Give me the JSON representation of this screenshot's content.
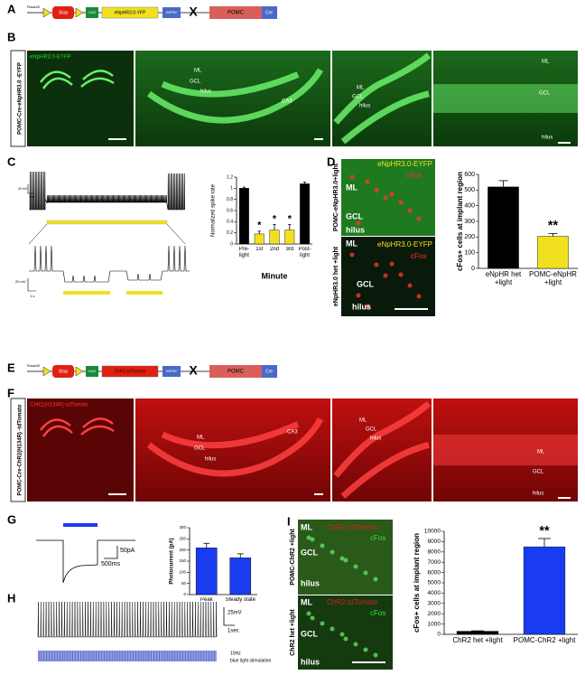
{
  "panel_labels": [
    "A",
    "B",
    "C",
    "D",
    "E",
    "F",
    "G",
    "H",
    "I"
  ],
  "construct_A": {
    "promoter": "Rosa26",
    "stop": "Stop",
    "cag": "CAG",
    "gene": "eNpHR3.0-YFP",
    "wpre": "WPRE",
    "cross": "X",
    "driver": "POMC",
    "cre": "Cre"
  },
  "construct_E": {
    "promoter": "Rosa26",
    "stop": "Stop",
    "cag": "CAG",
    "gene": "ChR2-tdTomato",
    "wpre": "WPRE",
    "cross": "X",
    "driver": "POMC",
    "cre": "Cre"
  },
  "panel_B": {
    "side_label": "POMC-Cre-eNpHR3.0 -EYFP",
    "stain": "eNpHR3.0-EYFP",
    "image_labels": [
      [
        "ML",
        "GCL",
        "hilus",
        "CA3"
      ],
      [
        "ML",
        "GCL",
        "hilus"
      ],
      [
        "ML",
        "GCL",
        "hilus"
      ]
    ]
  },
  "panel_C": {
    "scale_top": [
      "20 mV",
      "10s"
    ],
    "scale_bottom": [
      "20 mV",
      "1 s"
    ]
  },
  "panel_D": {
    "side_labels": [
      "POMC-eNpHR3.0+light",
      "eNpHR3.0 het +light"
    ],
    "images": [
      {
        "stain": "eNpHR3.0-EYFP",
        "marker": "cFos",
        "labels": [
          "ML",
          "GCL",
          "hilus"
        ]
      },
      {
        "stain": "eNpHR3.0-EYFP",
        "marker": "cFos",
        "labels": [
          "ML",
          "GCL",
          "hilus"
        ]
      }
    ]
  },
  "panel_F": {
    "side_label": "POMC-Cre-ChR2(H134R) -tdTomato",
    "stain": "ChR2(H134R)-tdTomato",
    "image_labels": [
      [
        "ML",
        "GCL",
        "hilus",
        "CA3"
      ],
      [
        "ML",
        "GCL",
        "hilus"
      ],
      [
        "ML",
        "GCL",
        "hilus"
      ]
    ]
  },
  "panel_G": {
    "scale": [
      "50pA",
      "500ms"
    ]
  },
  "panel_H": {
    "scale": [
      "25mV",
      "1sec"
    ],
    "stimulation": [
      "10Hz",
      "blue light stimulation"
    ]
  },
  "panel_I": {
    "side_labels": [
      "POMC-ChR2 +light",
      "ChR2 het +light"
    ],
    "images": [
      {
        "stain": "ChR2-tdTomato",
        "marker": "cFos",
        "labels": [
          "ML",
          "GCL",
          "hilus"
        ]
      },
      {
        "stain": "ChR2-tdTomato",
        "marker": "cFos",
        "labels": [
          "ML",
          "GCL",
          "hilus"
        ]
      }
    ]
  },
  "chart_data": [
    {
      "type": "bar",
      "y_label": "Normalized spike rate",
      "x_label": "Minute",
      "categories": [
        "Pre-light",
        "1st",
        "2nd",
        "3rd",
        "Post-light"
      ],
      "values": [
        1.0,
        0.18,
        0.25,
        0.25,
        1.08
      ],
      "errors": [
        0.02,
        0.05,
        0.1,
        0.1,
        0.03
      ],
      "colors": [
        "#000000",
        "#f0e020",
        "#f0e020",
        "#f0e020",
        "#000000"
      ],
      "significance": [
        null,
        "*",
        "*",
        "*",
        null
      ],
      "ylim": [
        0,
        1.2
      ],
      "yticks": [
        0,
        0.2,
        0.4,
        0.6,
        0.8,
        1,
        1.2
      ]
    },
    {
      "type": "bar",
      "y_label": "cFos+ cells at implant region",
      "categories": [
        "eNpHR het +light",
        "POMC-eNpHR +light"
      ],
      "values": [
        520,
        205
      ],
      "errors": [
        40,
        18
      ],
      "colors": [
        "#000000",
        "#f0e020"
      ],
      "significance": [
        null,
        "**"
      ],
      "ylim": [
        0,
        600
      ],
      "yticks": [
        0,
        100,
        200,
        300,
        400,
        500,
        600
      ]
    },
    {
      "type": "bar",
      "y_label": "Photocurrent (pA)",
      "categories": [
        "Peak",
        "Steady state"
      ],
      "values": [
        210,
        165
      ],
      "errors": [
        20,
        18
      ],
      "colors": [
        "#1a3cf0",
        "#1a3cf0"
      ],
      "significance": [
        null,
        null
      ],
      "ylim": [
        0,
        300
      ],
      "yticks": [
        0,
        50,
        100,
        150,
        200,
        250,
        300
      ]
    },
    {
      "type": "bar",
      "y_label": "cFos+ cells at implant region",
      "categories": [
        "ChR2 het +light",
        "POMC-ChR2 +light"
      ],
      "values": [
        300,
        8500
      ],
      "errors": [
        40,
        800
      ],
      "colors": [
        "#000000",
        "#1a3cf0"
      ],
      "significance": [
        null,
        "**"
      ],
      "ylim": [
        0,
        10000
      ],
      "yticks": [
        0,
        1000,
        2000,
        3000,
        4000,
        5000,
        6000,
        7000,
        8000,
        9000,
        10000
      ]
    }
  ]
}
